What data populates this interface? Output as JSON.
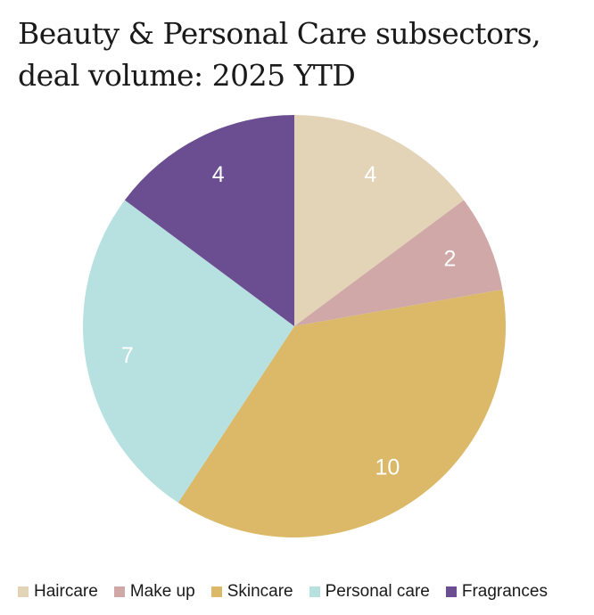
{
  "chart_data": {
    "type": "pie",
    "title_line1": "Beauty & Personal Care subsectors,",
    "title_line2": "deal volume: 2025 YTD",
    "legend_position": "bottom",
    "slices": [
      {
        "label": "Haircare",
        "value": 4,
        "color": "#E3D4B8"
      },
      {
        "label": "Make up",
        "value": 2,
        "color": "#CFA8A7"
      },
      {
        "label": "Skincare",
        "value": 10,
        "color": "#DBB968"
      },
      {
        "label": "Personal care",
        "value": 7,
        "color": "#B6E1E0"
      },
      {
        "label": "Fragrances",
        "value": 4,
        "color": "#6A4E91"
      }
    ]
  }
}
